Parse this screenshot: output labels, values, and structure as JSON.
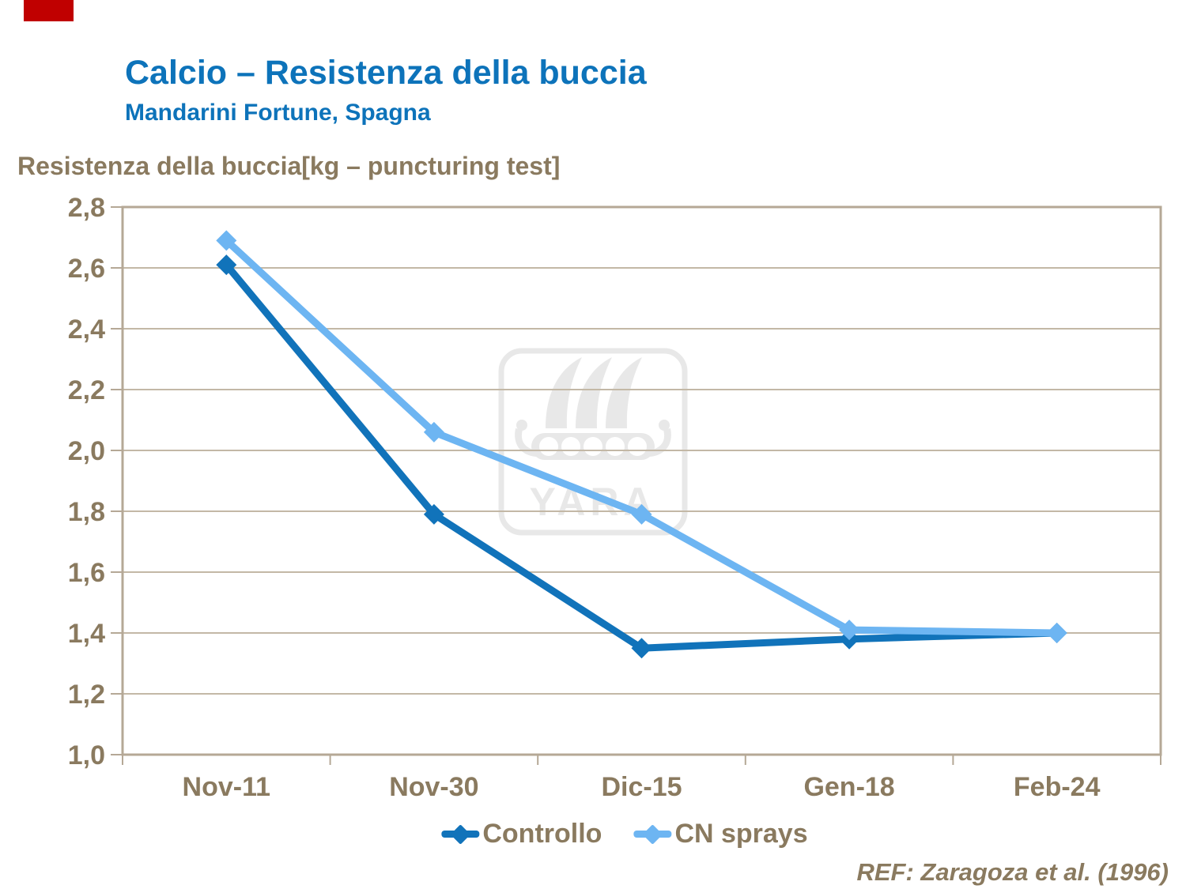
{
  "slide": {
    "title": "Calcio – Resistenza della buccia",
    "subtitle": "Mandarini Fortune, Spagna",
    "axis_title": "Resistenza della buccia[kg – puncturing test]",
    "reference": "REF: Zaragoza et al. (1996)",
    "watermark_text": "YARA",
    "corner_marker_color": "#c00000"
  },
  "colors": {
    "title_blue": "#0d73ba",
    "text_brown": "#8a7a5f",
    "gridline": "#c3b8a6",
    "plot_border": "#b5a896",
    "watermark": "#e8e8e8"
  },
  "chart_data": {
    "type": "line",
    "title": "Calcio – Resistenza della buccia",
    "subtitle": "Mandarini Fortune, Spagna",
    "ylabel": "Resistenza della buccia[kg – puncturing test]",
    "xlabel": "",
    "categories": [
      "Nov-11",
      "Nov-30",
      "Dic-15",
      "Gen-18",
      "Feb-24"
    ],
    "series": [
      {
        "name": "Controllo",
        "color": "#1173ba",
        "values": [
          2.61,
          1.79,
          1.35,
          1.38,
          1.4
        ]
      },
      {
        "name": "CN sprays",
        "color": "#6db5f2",
        "values": [
          2.69,
          2.06,
          1.79,
          1.41,
          1.4
        ]
      }
    ],
    "ylim": [
      1.0,
      2.8
    ],
    "ytick_step": 0.2,
    "ytick_labels": [
      "1,0",
      "1,2",
      "1,4",
      "1,6",
      "1,8",
      "2,0",
      "2,2",
      "2,4",
      "2,6",
      "2,8"
    ],
    "grid": "horizontal",
    "legend_position": "bottom",
    "marker": "diamond"
  }
}
